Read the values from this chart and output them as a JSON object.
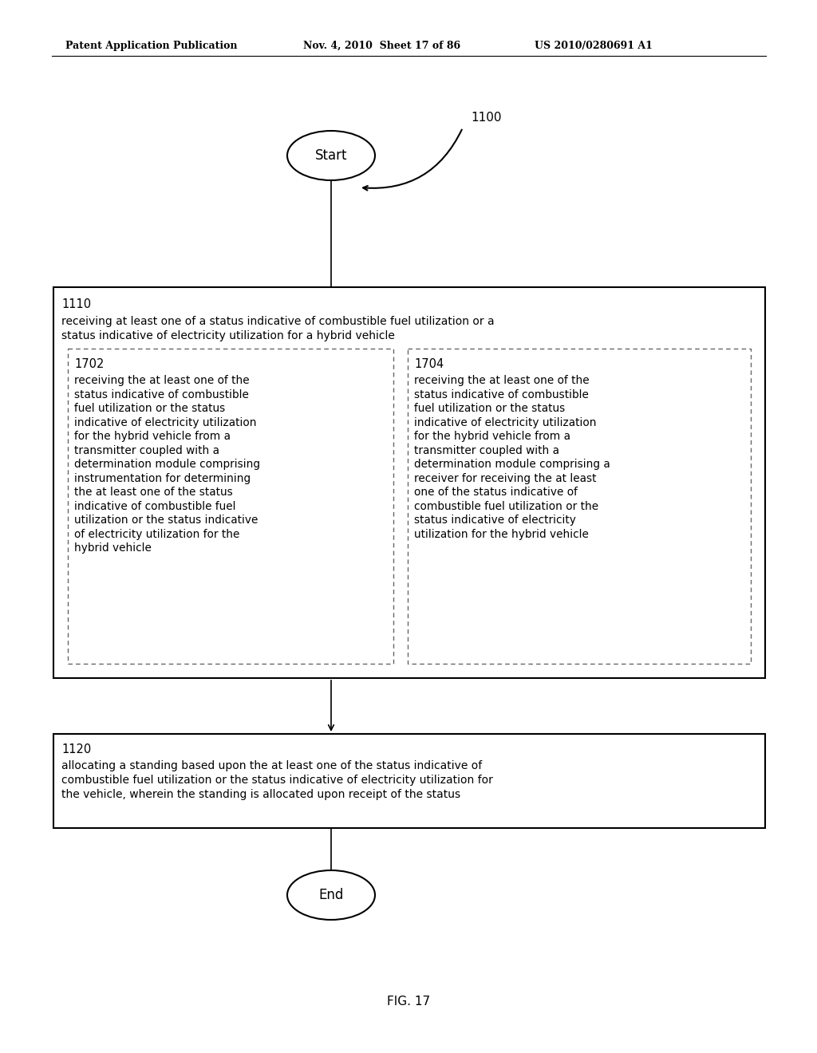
{
  "bg_color": "#ffffff",
  "header_left": "Patent Application Publication",
  "header_mid": "Nov. 4, 2010  Sheet 17 of 86",
  "header_right": "US 2010/0280691 A1",
  "figure_label": "FIG. 17",
  "flow_ref": "1100",
  "start_label": "Start",
  "end_label": "End",
  "box1110_id": "1110",
  "box1110_text": "receiving at least one of a status indicative of combustible fuel utilization or a\nstatus indicative of electricity utilization for a hybrid vehicle",
  "box1702_id": "1702",
  "box1702_text": "receiving the at least one of the\nstatus indicative of combustible\nfuel utilization or the status\nindicative of electricity utilization\nfor the hybrid vehicle from a\ntransmitter coupled with a\ndetermination module comprising\ninstrumentation for determining\nthe at least one of the status\nindicative of combustible fuel\nutilization or the status indicative\nof electricity utilization for the\nhybrid vehicle",
  "box1704_id": "1704",
  "box1704_text": "receiving the at least one of the\nstatus indicative of combustible\nfuel utilization or the status\nindicative of electricity utilization\nfor the hybrid vehicle from a\ntransmitter coupled with a\ndetermination module comprising a\nreceiver for receiving the at least\none of the status indicative of\ncombustible fuel utilization or the\nstatus indicative of electricity\nutilization for the hybrid vehicle",
  "box1120_id": "1120",
  "box1120_text": "allocating a standing based upon the at least one of the status indicative of\ncombustible fuel utilization or the status indicative of electricity utilization for\nthe vehicle, wherein the standing is allocated upon receipt of the status"
}
